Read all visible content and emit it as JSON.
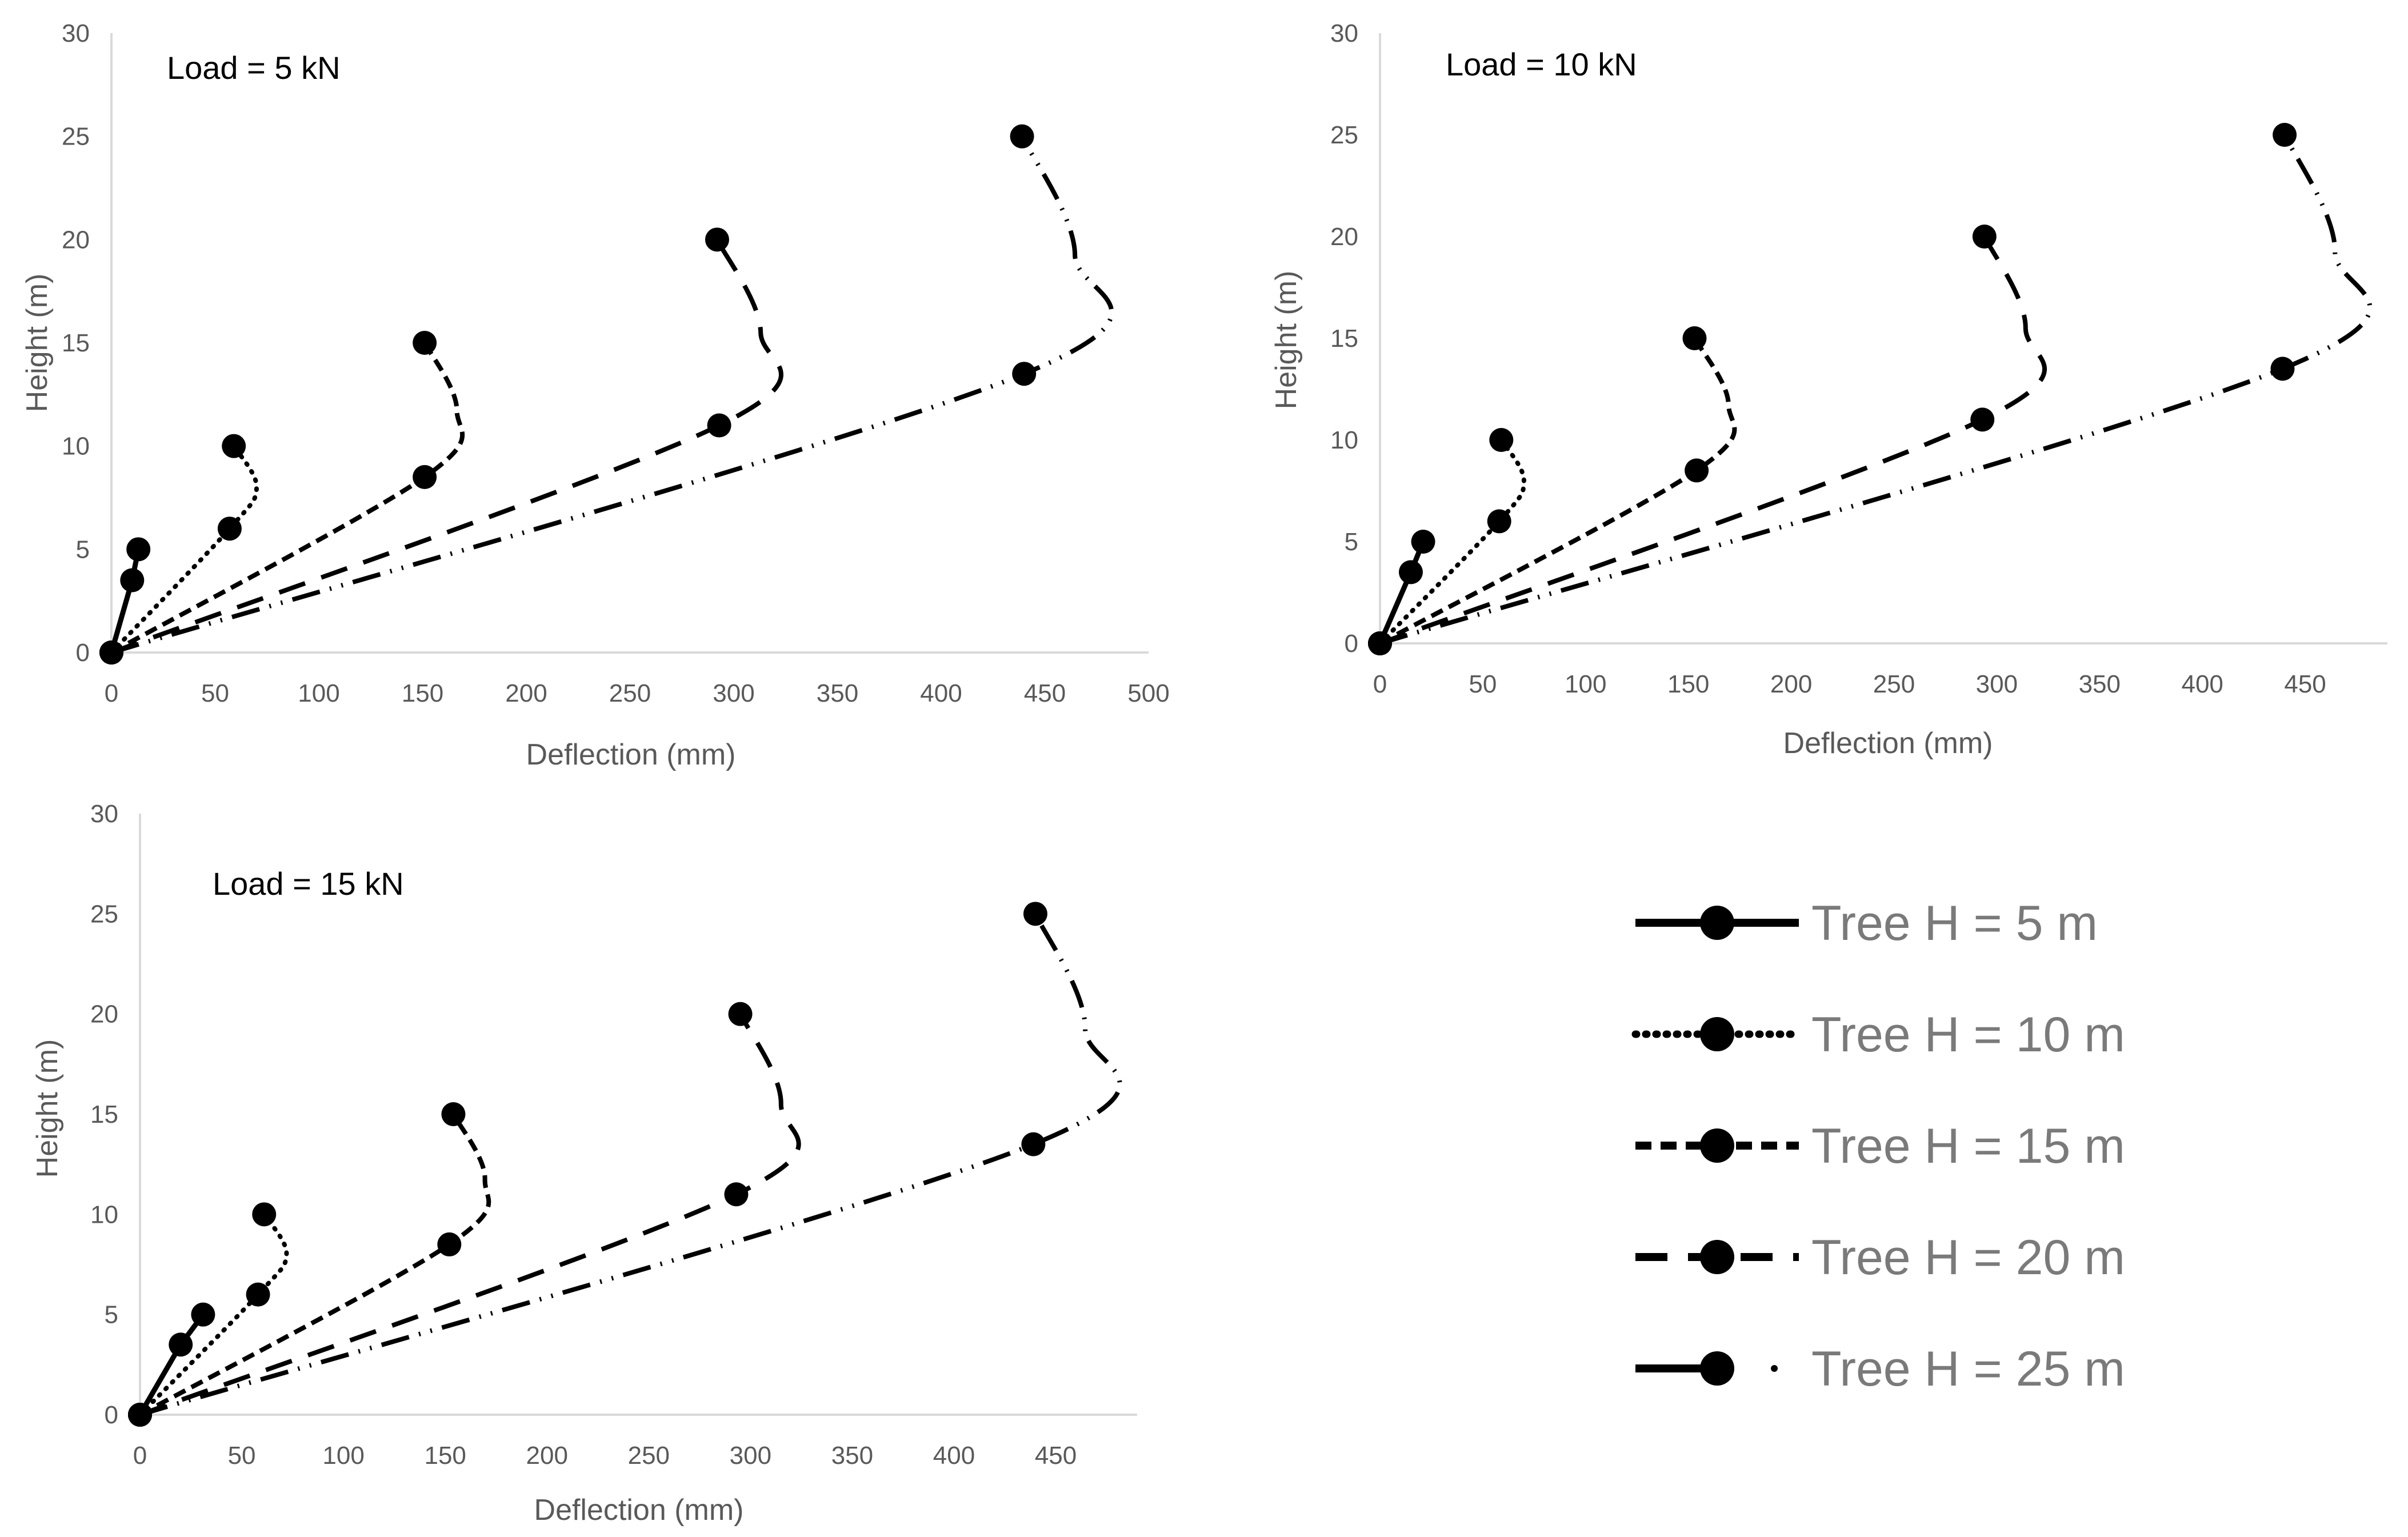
{
  "legend_entries": [
    {
      "key": "h5",
      "label": "Tree H = 5 m"
    },
    {
      "key": "h10",
      "label": "Tree H = 10 m"
    },
    {
      "key": "h15",
      "label": "Tree H = 15 m"
    },
    {
      "key": "h20",
      "label": "Tree H = 20 m"
    },
    {
      "key": "h25",
      "label": "Tree H = 25 m"
    }
  ],
  "colors": {
    "series": "#000000",
    "axis": "#d9d9d9",
    "tick_text": "#595959"
  },
  "chart_data": [
    {
      "type": "line",
      "title": "Load = 5 kN",
      "xlabel": "Deflection (mm)",
      "ylabel": "Height (m)",
      "xlim": [
        0,
        500
      ],
      "ylim": [
        0,
        30
      ],
      "xticks": [
        0,
        50,
        100,
        150,
        200,
        250,
        300,
        350,
        400,
        450,
        500
      ],
      "yticks": [
        0,
        5,
        10,
        15,
        20,
        25,
        30
      ],
      "series": [
        {
          "name": "Tree H = 5 m",
          "key": "h5",
          "x": [
            0,
            10,
            13
          ],
          "y": [
            0,
            3.5,
            5
          ]
        },
        {
          "name": "Tree H = 10 m",
          "key": "h10",
          "x": [
            0,
            57,
            59
          ],
          "y": [
            0,
            6,
            10
          ]
        },
        {
          "name": "Tree H = 15 m",
          "key": "h15",
          "x": [
            0,
            151,
            151
          ],
          "y": [
            0,
            8.5,
            15
          ]
        },
        {
          "name": "Tree H = 20 m",
          "key": "h20",
          "x": [
            0,
            293,
            292
          ],
          "y": [
            0,
            11,
            20
          ]
        },
        {
          "name": "Tree H = 25 m",
          "key": "h25",
          "x": [
            0,
            440,
            439
          ],
          "y": [
            0,
            13.5,
            25
          ]
        }
      ]
    },
    {
      "type": "line",
      "title": "Load = 10 kN",
      "xlabel": "Deflection (mm)",
      "ylabel": "Height (m)",
      "xlim": [
        0,
        490
      ],
      "ylim": [
        0,
        30
      ],
      "xticks": [
        0,
        50,
        100,
        150,
        200,
        250,
        300,
        350,
        400,
        450
      ],
      "yticks": [
        0,
        5,
        10,
        15,
        20,
        25,
        30
      ],
      "series": [
        {
          "name": "Tree H = 5 m",
          "key": "h5",
          "x": [
            0,
            15,
            21
          ],
          "y": [
            0,
            3.5,
            5
          ]
        },
        {
          "name": "Tree H = 10 m",
          "key": "h10",
          "x": [
            0,
            58,
            59
          ],
          "y": [
            0,
            6,
            10
          ]
        },
        {
          "name": "Tree H = 15 m",
          "key": "h15",
          "x": [
            0,
            154,
            153
          ],
          "y": [
            0,
            8.5,
            15
          ]
        },
        {
          "name": "Tree H = 20 m",
          "key": "h20",
          "x": [
            0,
            293,
            294
          ],
          "y": [
            0,
            11,
            20
          ]
        },
        {
          "name": "Tree H = 25 m",
          "key": "h25",
          "x": [
            0,
            439,
            440
          ],
          "y": [
            0,
            13.5,
            25
          ]
        }
      ]
    },
    {
      "type": "line",
      "title": "Load = 15 kN",
      "xlabel": "Deflection (mm)",
      "ylabel": "Height (m)",
      "xlim": [
        0,
        490
      ],
      "ylim": [
        0,
        30
      ],
      "xticks": [
        0,
        50,
        100,
        150,
        200,
        250,
        300,
        350,
        400,
        450
      ],
      "yticks": [
        0,
        5,
        10,
        15,
        20,
        25,
        30
      ],
      "series": [
        {
          "name": "Tree H = 5 m",
          "key": "h5",
          "x": [
            0,
            20,
            31
          ],
          "y": [
            0,
            3.5,
            5
          ]
        },
        {
          "name": "Tree H = 10 m",
          "key": "h10",
          "x": [
            0,
            58,
            61
          ],
          "y": [
            0,
            6,
            10
          ]
        },
        {
          "name": "Tree H = 15 m",
          "key": "h15",
          "x": [
            0,
            152,
            154
          ],
          "y": [
            0,
            8.5,
            15
          ]
        },
        {
          "name": "Tree H = 20 m",
          "key": "h20",
          "x": [
            0,
            293,
            295
          ],
          "y": [
            0,
            11,
            20
          ]
        },
        {
          "name": "Tree H = 25 m",
          "key": "h25",
          "x": [
            0,
            439,
            440
          ],
          "y": [
            0,
            13.5,
            25
          ]
        }
      ]
    }
  ]
}
